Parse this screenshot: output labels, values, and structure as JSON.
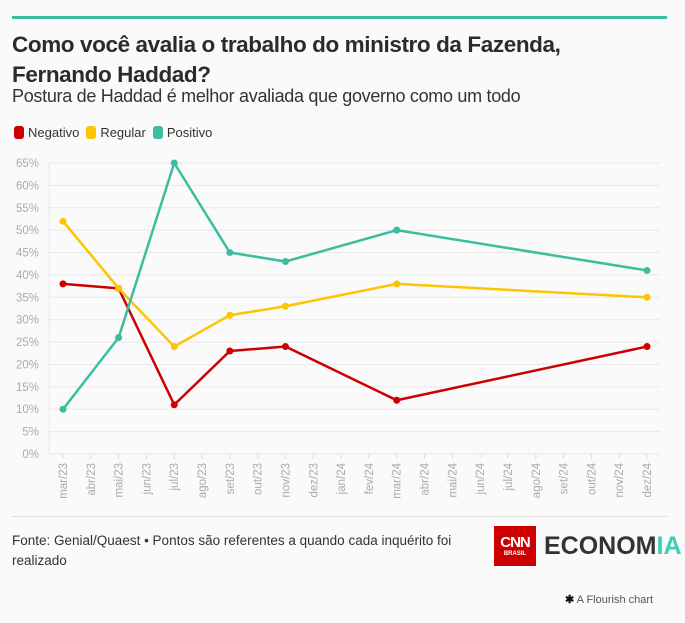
{
  "header": {
    "title": "Como você avalia o trabalho do ministro da Fazenda, Fernando Haddad?",
    "subtitle": "Postura de Haddad é melhor avaliada que governo como um todo"
  },
  "legend": [
    {
      "label": "Negativo",
      "color": "#cc0000"
    },
    {
      "label": "Regular",
      "color": "#ffc400"
    },
    {
      "label": "Positivo",
      "color": "#3dbd9f"
    }
  ],
  "footer": {
    "note": "Fonte: Genial/Quaest • Pontos são referentes a quando cada inquérito foi realizado",
    "logo_cnn": "CNN",
    "logo_cnn_sub": "BRASIL",
    "logo_econ_main": "ECONOM",
    "logo_econ_accent": "IA",
    "flourish": "A Flourish chart",
    "flourish_icon": "✱"
  },
  "chart_data": {
    "type": "line",
    "title": "Como você avalia o trabalho do ministro da Fazenda, Fernando Haddad?",
    "subtitle": "Postura de Haddad é melhor avaliada que governo como um todo",
    "xlabel": "",
    "ylabel": "",
    "x_ticks": [
      "mar/23",
      "abr/23",
      "mai/23",
      "jun/23",
      "jul/23",
      "ago/23",
      "set/23",
      "out/23",
      "nov/23",
      "dez/23",
      "jan/24",
      "fev/24",
      "mar/24",
      "abr/24",
      "mai/24",
      "jun/24",
      "jul/24",
      "ago/24",
      "set/24",
      "out/24",
      "nov/24",
      "dez/24"
    ],
    "y_ticks": [
      "0%",
      "5%",
      "10%",
      "15%",
      "20%",
      "25%",
      "30%",
      "35%",
      "40%",
      "45%",
      "50%",
      "55%",
      "60%",
      "65%"
    ],
    "ylim": [
      0,
      65
    ],
    "grid": true,
    "legend_position": "top-left",
    "series": [
      {
        "name": "Negativo",
        "color": "#cc0000",
        "x": [
          "mar/23",
          "mai/23",
          "jul/23",
          "set/23",
          "nov/23",
          "mar/24",
          "dez/24"
        ],
        "values": [
          38,
          37,
          11,
          23,
          24,
          12,
          24
        ]
      },
      {
        "name": "Regular",
        "color": "#ffc400",
        "x": [
          "mar/23",
          "mai/23",
          "jul/23",
          "set/23",
          "nov/23",
          "mar/24",
          "dez/24"
        ],
        "values": [
          52,
          37,
          24,
          31,
          33,
          38,
          35
        ]
      },
      {
        "name": "Positivo",
        "color": "#3dbd9f",
        "x": [
          "mar/23",
          "mai/23",
          "jul/23",
          "set/23",
          "nov/23",
          "mar/24",
          "dez/24"
        ],
        "values": [
          10,
          26,
          65,
          45,
          43,
          50,
          41
        ]
      }
    ]
  }
}
